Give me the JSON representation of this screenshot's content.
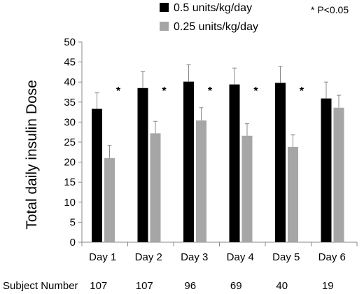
{
  "chart_data": {
    "type": "bar",
    "categories": [
      "Day 1",
      "Day 2",
      "Day 3",
      "Day 4",
      "Day 5",
      "Day 6"
    ],
    "series": [
      {
        "name": "0.5 units/kg/day",
        "color": "#000000",
        "values": [
          33.3,
          38.5,
          40.1,
          39.4,
          39.8,
          35.9
        ],
        "error": [
          4.0,
          4.1,
          4.2,
          4.1,
          4.1,
          4.1
        ]
      },
      {
        "name": "0.25 units/kg/day",
        "color": "#a6a6a6",
        "values": [
          21.0,
          27.2,
          30.4,
          26.6,
          23.8,
          33.6
        ],
        "error": [
          3.2,
          3.0,
          3.2,
          3.0,
          3.0,
          3.1
        ]
      }
    ],
    "title": "",
    "xlabel": "",
    "ylabel": "Total daily insulin Dose",
    "ylim": [
      0,
      50
    ],
    "yticks": [
      0,
      5,
      10,
      15,
      20,
      25,
      30,
      35,
      40,
      45,
      50
    ],
    "grid": false,
    "legend_position": "top-center",
    "significance_note": "* P<0.05",
    "significance_marker": "*",
    "significant": [
      true,
      true,
      true,
      true,
      true,
      false
    ],
    "subject_number_label": "Subject Number",
    "subject_numbers": [
      "107",
      "107",
      "96",
      "69",
      "40",
      "19"
    ]
  }
}
